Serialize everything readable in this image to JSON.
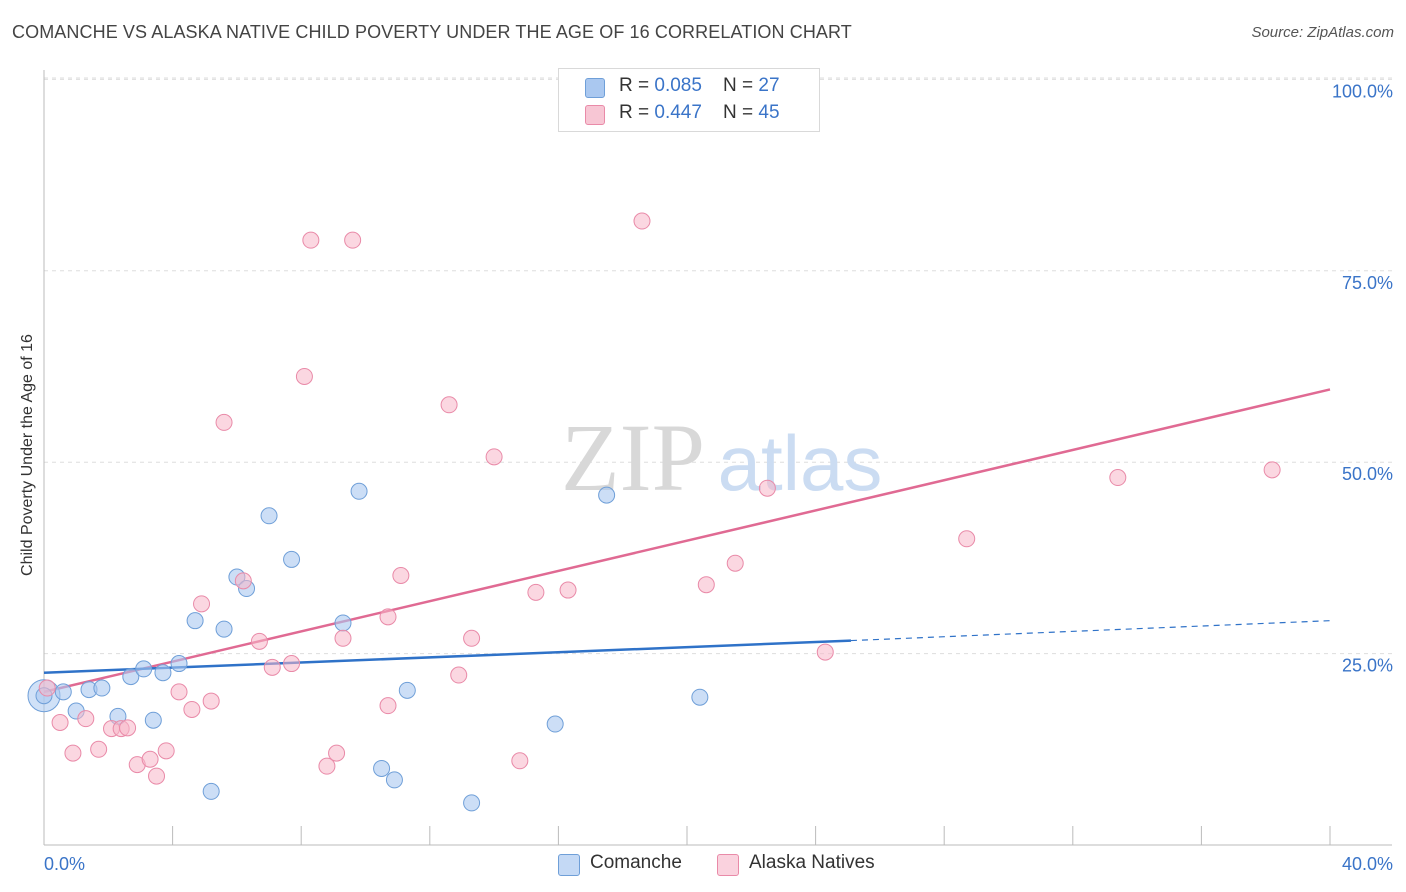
{
  "title": "COMANCHE VS ALASKA NATIVE CHILD POVERTY UNDER THE AGE OF 16 CORRELATION CHART",
  "source": "Source: ZipAtlas.com",
  "watermark": {
    "zip": "ZIP",
    "atlas": "atlas"
  },
  "legend": {
    "rows": [
      {
        "r_label": "R = ",
        "r_value": "0.085",
        "n_label": "N = ",
        "n_value": "27"
      },
      {
        "r_label": "R = ",
        "r_value": "0.447",
        "n_label": "N = ",
        "n_value": "45"
      }
    ]
  },
  "bottom_legend": {
    "comanche": "Comanche",
    "alaska": "Alaska Natives"
  },
  "chart_data": {
    "type": "scatter",
    "title": "COMANCHE VS ALASKA NATIVE CHILD POVERTY UNDER THE AGE OF 16 CORRELATION CHART",
    "ylabel": "Child Poverty Under the Age of 16",
    "xlabel": "",
    "xlim": [
      0,
      40
    ],
    "ylim": [
      0,
      105
    ],
    "x_tick_labels": [
      "0.0%",
      "40.0%"
    ],
    "y_ticks": [
      25,
      50,
      75,
      100
    ],
    "y_tick_labels": [
      "25.0%",
      "50.0%",
      "75.0%",
      "100.0%"
    ],
    "grid": "horizontal dashed",
    "legend_placement": "top-center",
    "colors": {
      "comanche_fill": "#aac8f0",
      "comanche_stroke": "#6f9fd8",
      "comanche_line": "#2f72c8",
      "alaska_fill": "#f7b6c9",
      "alaska_stroke": "#e98aa8",
      "alaska_line": "#e06a93",
      "tick_label": "#3a74c8",
      "grid": "#dddddd"
    },
    "series": [
      {
        "name": "Comanche",
        "r": 0.085,
        "n": 27,
        "trend": {
          "x0": 0,
          "y0": 22.5,
          "x1": 25.1,
          "y1": 26.7,
          "dashed_to_x": 40,
          "dashed_to_y": 29.3
        },
        "points": [
          [
            0.0,
            19.5
          ],
          [
            0.6,
            20.0
          ],
          [
            1.0,
            17.5
          ],
          [
            1.4,
            20.3
          ],
          [
            1.8,
            20.5
          ],
          [
            2.3,
            16.8
          ],
          [
            2.7,
            22.0
          ],
          [
            3.1,
            23.0
          ],
          [
            3.4,
            16.3
          ],
          [
            3.7,
            22.5
          ],
          [
            4.2,
            23.7
          ],
          [
            4.7,
            29.3
          ],
          [
            5.2,
            7.0
          ],
          [
            5.6,
            28.2
          ],
          [
            6.0,
            35.0
          ],
          [
            6.3,
            33.5
          ],
          [
            7.0,
            43.0
          ],
          [
            7.7,
            37.3
          ],
          [
            9.3,
            29.0
          ],
          [
            9.8,
            46.2
          ],
          [
            10.5,
            10.0
          ],
          [
            10.9,
            8.5
          ],
          [
            11.3,
            20.2
          ],
          [
            13.3,
            5.5
          ],
          [
            15.9,
            15.8
          ],
          [
            17.5,
            45.7
          ],
          [
            20.4,
            19.3
          ]
        ]
      },
      {
        "name": "Alaska Natives",
        "r": 0.447,
        "n": 45,
        "trend": {
          "x0": 0,
          "y0": 20.0,
          "x1": 40,
          "y1": 59.5
        },
        "points": [
          [
            0.1,
            20.5
          ],
          [
            0.5,
            16.0
          ],
          [
            0.9,
            12.0
          ],
          [
            1.3,
            16.5
          ],
          [
            1.7,
            12.5
          ],
          [
            2.1,
            15.2
          ],
          [
            2.4,
            15.2
          ],
          [
            2.6,
            15.3
          ],
          [
            2.9,
            10.5
          ],
          [
            3.3,
            11.2
          ],
          [
            3.5,
            9.0
          ],
          [
            3.8,
            12.3
          ],
          [
            4.2,
            20.0
          ],
          [
            4.6,
            17.7
          ],
          [
            4.9,
            31.5
          ],
          [
            5.2,
            18.8
          ],
          [
            5.6,
            55.2
          ],
          [
            6.2,
            34.5
          ],
          [
            6.7,
            26.6
          ],
          [
            7.1,
            23.2
          ],
          [
            7.7,
            23.7
          ],
          [
            8.1,
            61.2
          ],
          [
            8.3,
            79.0
          ],
          [
            8.8,
            10.3
          ],
          [
            9.1,
            12.0
          ],
          [
            9.3,
            27.0
          ],
          [
            9.6,
            79.0
          ],
          [
            10.7,
            29.8
          ],
          [
            10.7,
            18.2
          ],
          [
            11.1,
            35.2
          ],
          [
            12.6,
            57.5
          ],
          [
            12.9,
            22.2
          ],
          [
            13.3,
            27.0
          ],
          [
            14.0,
            50.7
          ],
          [
            14.8,
            11.0
          ],
          [
            15.3,
            33.0
          ],
          [
            16.3,
            33.3
          ],
          [
            18.6,
            81.5
          ],
          [
            20.6,
            34.0
          ],
          [
            21.5,
            36.8
          ],
          [
            22.5,
            46.6
          ],
          [
            24.3,
            25.2
          ],
          [
            28.7,
            40.0
          ],
          [
            33.4,
            48.0
          ],
          [
            38.2,
            49.0
          ]
        ]
      }
    ]
  }
}
